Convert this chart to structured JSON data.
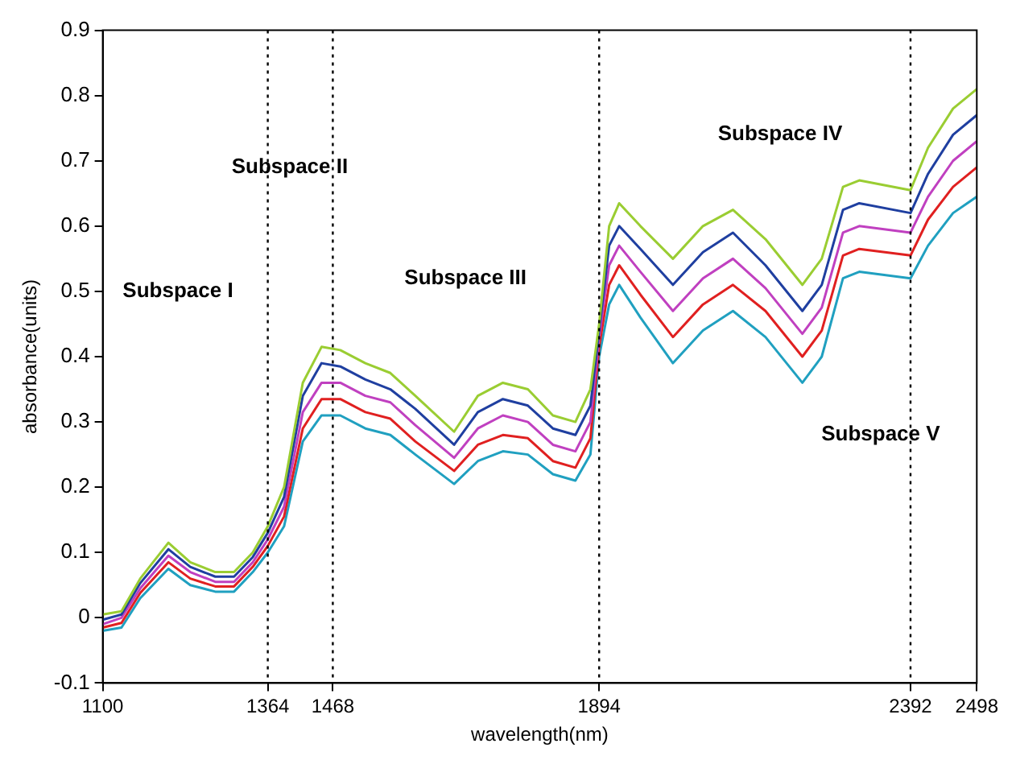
{
  "chart_data": {
    "type": "line",
    "xlabel": "wavelength(nm)",
    "ylabel": "absorbance(units)",
    "x": [
      1100,
      1130,
      1160,
      1205,
      1240,
      1280,
      1310,
      1340,
      1364,
      1390,
      1420,
      1450,
      1480,
      1520,
      1560,
      1600,
      1662,
      1700,
      1740,
      1780,
      1820,
      1856,
      1880,
      1894,
      1910,
      1926,
      1960,
      2012,
      2060,
      2108,
      2160,
      2219,
      2250,
      2284,
      2310,
      2392,
      2420,
      2460,
      2498
    ],
    "series": [
      {
        "color": "#9acd32",
        "values": [
          0.005,
          0.01,
          0.06,
          0.115,
          0.085,
          0.07,
          0.07,
          0.1,
          0.14,
          0.2,
          0.36,
          0.415,
          0.41,
          0.39,
          0.375,
          0.34,
          0.285,
          0.34,
          0.36,
          0.35,
          0.31,
          0.3,
          0.35,
          0.45,
          0.6,
          0.635,
          0.6,
          0.55,
          0.6,
          0.625,
          0.58,
          0.51,
          0.55,
          0.66,
          0.67,
          0.655,
          0.72,
          0.78,
          0.81
        ]
      },
      {
        "color": "#1f3fa0",
        "values": [
          -0.003,
          0.005,
          0.053,
          0.105,
          0.078,
          0.063,
          0.063,
          0.093,
          0.13,
          0.185,
          0.34,
          0.39,
          0.385,
          0.365,
          0.35,
          0.32,
          0.265,
          0.315,
          0.335,
          0.325,
          0.29,
          0.28,
          0.325,
          0.44,
          0.57,
          0.6,
          0.565,
          0.51,
          0.56,
          0.59,
          0.54,
          0.47,
          0.51,
          0.625,
          0.635,
          0.62,
          0.68,
          0.74,
          0.77
        ]
      },
      {
        "color": "#c040c0",
        "values": [
          -0.01,
          0,
          0.045,
          0.095,
          0.07,
          0.055,
          0.055,
          0.085,
          0.12,
          0.17,
          0.315,
          0.36,
          0.36,
          0.34,
          0.33,
          0.295,
          0.245,
          0.29,
          0.31,
          0.3,
          0.265,
          0.255,
          0.3,
          0.43,
          0.54,
          0.57,
          0.53,
          0.47,
          0.52,
          0.55,
          0.505,
          0.435,
          0.475,
          0.59,
          0.6,
          0.59,
          0.645,
          0.7,
          0.73
        ]
      },
      {
        "color": "#e02020",
        "values": [
          -0.015,
          -0.008,
          0.038,
          0.085,
          0.06,
          0.048,
          0.048,
          0.078,
          0.11,
          0.155,
          0.29,
          0.335,
          0.335,
          0.315,
          0.305,
          0.27,
          0.225,
          0.265,
          0.28,
          0.275,
          0.24,
          0.23,
          0.275,
          0.415,
          0.51,
          0.54,
          0.495,
          0.43,
          0.48,
          0.51,
          0.47,
          0.4,
          0.44,
          0.555,
          0.565,
          0.555,
          0.61,
          0.66,
          0.69
        ]
      },
      {
        "color": "#20a0c0",
        "values": [
          -0.02,
          -0.015,
          0.03,
          0.075,
          0.05,
          0.04,
          0.04,
          0.07,
          0.1,
          0.14,
          0.27,
          0.31,
          0.31,
          0.29,
          0.28,
          0.25,
          0.205,
          0.24,
          0.255,
          0.25,
          0.22,
          0.21,
          0.25,
          0.4,
          0.48,
          0.51,
          0.46,
          0.39,
          0.44,
          0.47,
          0.43,
          0.36,
          0.4,
          0.52,
          0.53,
          0.52,
          0.57,
          0.62,
          0.645
        ]
      }
    ],
    "xlim": [
      1100,
      2498
    ],
    "xticks": [
      1100,
      1364,
      1468,
      1894,
      2392,
      2498
    ],
    "ylim": [
      -0.1,
      0.9
    ],
    "yticks": [
      -0.1,
      0,
      0.1,
      0.2,
      0.3,
      0.4,
      0.5,
      0.6,
      0.7,
      0.8,
      0.9
    ],
    "ref_lines": [
      {
        "axis": "x",
        "value": 1364,
        "color": "#000000",
        "line_style": "dotted"
      },
      {
        "axis": "x",
        "value": 1468,
        "color": "#000000",
        "line_style": "dotted"
      },
      {
        "axis": "x",
        "value": 1894,
        "color": "#000000",
        "line_style": "dotted"
      },
      {
        "axis": "x",
        "value": 2392,
        "color": "#000000",
        "line_style": "dotted"
      }
    ],
    "annotations": [
      "Subspace I",
      "Subspace II",
      "Subspace III",
      "Subspace IV",
      "Subspace V"
    ],
    "grid": false,
    "legend": false,
    "marker": "none",
    "line_style": "solid"
  }
}
